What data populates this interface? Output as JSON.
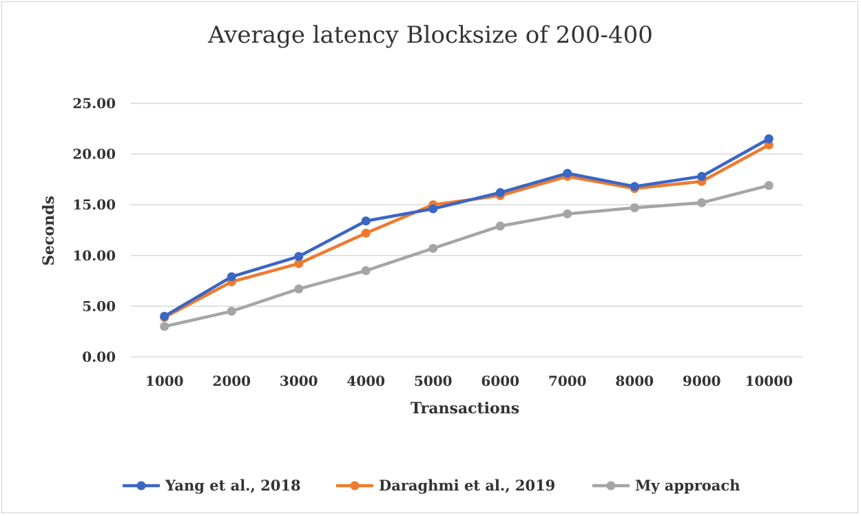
{
  "chart_data": {
    "type": "line",
    "title": "Average latency Blocksize of 200-400",
    "xlabel": "Transactions",
    "ylabel": "Seconds",
    "categories": [
      "1000",
      "2000",
      "3000",
      "4000",
      "5000",
      "6000",
      "7000",
      "8000",
      "9000",
      "10000"
    ],
    "y_ticks": [
      "0.00",
      "5.00",
      "10.00",
      "15.00",
      "20.00",
      "25.00"
    ],
    "ylim": [
      0,
      25
    ],
    "grid": true,
    "legend_position": "bottom",
    "series": [
      {
        "name": "Yang et al., 2018",
        "color": "#3a66c4",
        "values": [
          4.0,
          7.9,
          9.9,
          13.4,
          14.6,
          16.2,
          18.1,
          16.8,
          17.8,
          21.5
        ]
      },
      {
        "name": "Daraghmi et al., 2019",
        "color": "#ef7a2e",
        "values": [
          3.9,
          7.4,
          9.2,
          12.2,
          15.0,
          15.9,
          17.8,
          16.6,
          17.3,
          20.9
        ]
      },
      {
        "name": "My approach",
        "color": "#a5a5a5",
        "values": [
          3.0,
          4.5,
          6.7,
          8.5,
          10.7,
          12.9,
          14.1,
          14.7,
          15.2,
          16.9
        ]
      }
    ]
  }
}
